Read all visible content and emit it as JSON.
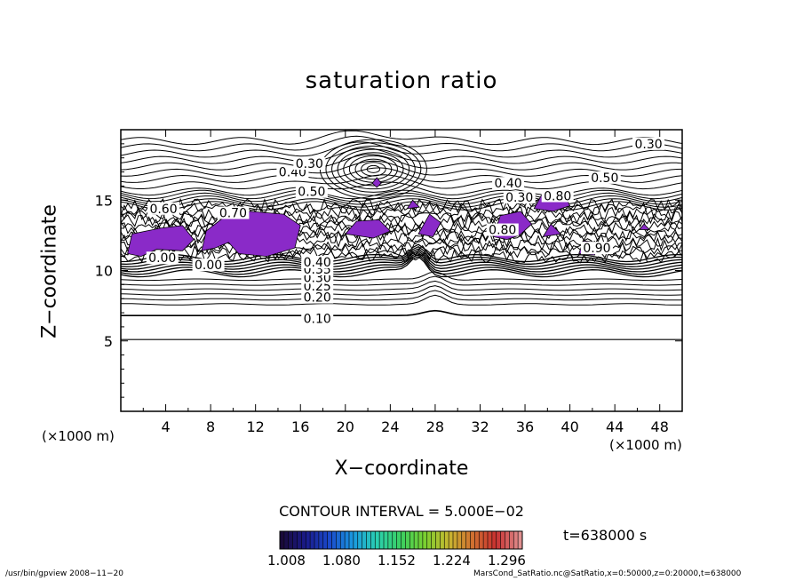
{
  "chart_data": {
    "type": "contour",
    "title": "saturation ratio",
    "xlabel": "X−coordinate",
    "ylabel": "Z−coordinate",
    "x_unit_left": "(×1000 m)",
    "x_unit_right": "(×1000 m)",
    "xlim": [
      0,
      50
    ],
    "ylim": [
      0,
      20
    ],
    "x_ticks": [
      4,
      8,
      12,
      16,
      20,
      24,
      28,
      32,
      36,
      40,
      44,
      48
    ],
    "y_ticks": [
      5,
      10,
      15
    ],
    "contour_interval_text": "CONTOUR INTERVAL = 5.000E−02",
    "contour_labels": [
      {
        "text": "0.10",
        "x": 17.5,
        "z": 6.6
      },
      {
        "text": "0.20",
        "x": 17.5,
        "z": 8.1
      },
      {
        "text": "0.25",
        "x": 17.5,
        "z": 8.9
      },
      {
        "text": "0.30",
        "x": 17.5,
        "z": 9.5
      },
      {
        "text": "0.35",
        "x": 17.5,
        "z": 10.1
      },
      {
        "text": "0.40",
        "x": 17.5,
        "z": 10.6
      },
      {
        "text": "0.00",
        "x": 3.7,
        "z": 10.9
      },
      {
        "text": "0.00",
        "x": 7.8,
        "z": 10.4
      },
      {
        "text": "0.50",
        "x": 17.0,
        "z": 15.6
      },
      {
        "text": "0.40",
        "x": 15.3,
        "z": 17.0
      },
      {
        "text": "0.30",
        "x": 16.8,
        "z": 17.6
      },
      {
        "text": "0.60",
        "x": 3.8,
        "z": 14.4
      },
      {
        "text": "0.70",
        "x": 10.0,
        "z": 14.1
      },
      {
        "text": "0.80",
        "x": 34.0,
        "z": 12.9
      },
      {
        "text": "0.40",
        "x": 34.5,
        "z": 16.2
      },
      {
        "text": "0.30",
        "x": 35.5,
        "z": 15.2
      },
      {
        "text": "0.80",
        "x": 38.9,
        "z": 15.3
      },
      {
        "text": "0.50",
        "x": 43.1,
        "z": 16.6
      },
      {
        "text": "0.30",
        "x": 47.0,
        "z": 19.0
      },
      {
        "text": "0.90",
        "x": 42.4,
        "z": 11.6
      }
    ],
    "colorbar": {
      "ticks": [
        "1.008",
        "1.080",
        "1.152",
        "1.224",
        "1.296"
      ],
      "colors": [
        "#1a0a3a",
        "#1a1a8a",
        "#1a4acc",
        "#1a9ae0",
        "#2ad0b0",
        "#3ad060",
        "#7ad030",
        "#c8b830",
        "#d07030",
        "#c83030",
        "#e09090"
      ]
    },
    "supersaturated_color": "#8a2ac8",
    "time_text": "t=638000 s"
  },
  "footer": {
    "left": "/usr/bin/gpview  2008−11−20",
    "right": "MarsCond_SatRatio.nc@SatRatio,x=0:50000,z=0:20000,t=638000"
  }
}
